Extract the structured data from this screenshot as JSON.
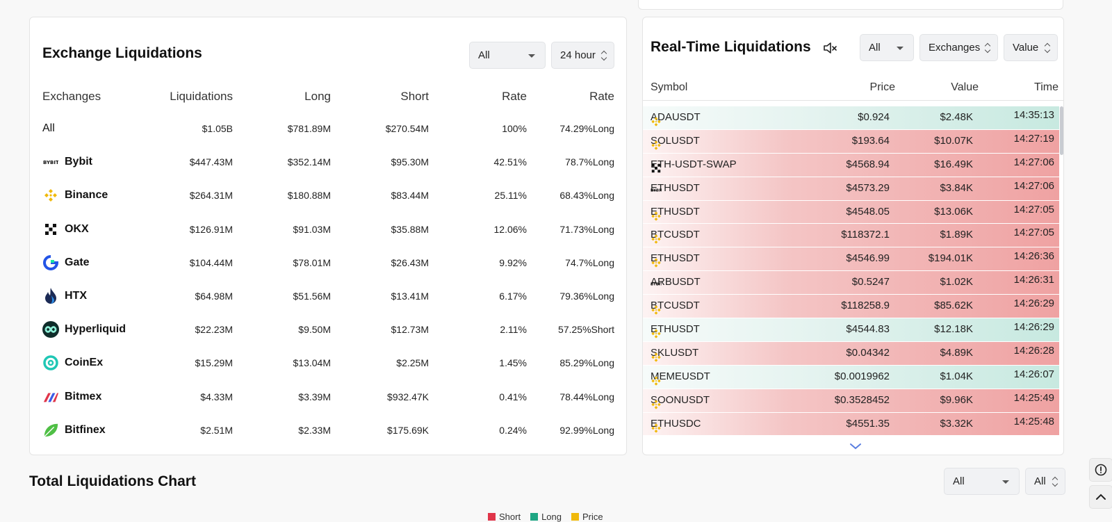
{
  "exchange_liquidations": {
    "title": "Exchange Liquidations",
    "filter_coin": "All",
    "filter_time": "24 hour",
    "columns": [
      "Exchanges",
      "Liquidations",
      "Long",
      "Short",
      "Rate",
      "Rate"
    ],
    "rows": [
      {
        "name": "All",
        "liq": "$1.05B",
        "long": "$781.89M",
        "short": "$270.54M",
        "rate": "100%",
        "side_rate": "74.29%Long",
        "side": "long",
        "icon": "none"
      },
      {
        "name": "Bybit",
        "liq": "$447.43M",
        "long": "$352.14M",
        "short": "$95.30M",
        "rate": "42.51%",
        "side_rate": "78.7%Long",
        "side": "long",
        "icon": "bybit-icon"
      },
      {
        "name": "Binance",
        "liq": "$264.31M",
        "long": "$180.88M",
        "short": "$83.44M",
        "rate": "25.11%",
        "side_rate": "68.43%Long",
        "side": "long",
        "icon": "binance-icon"
      },
      {
        "name": "OKX",
        "liq": "$126.91M",
        "long": "$91.03M",
        "short": "$35.88M",
        "rate": "12.06%",
        "side_rate": "71.73%Long",
        "side": "long",
        "icon": "okx-icon"
      },
      {
        "name": "Gate",
        "liq": "$104.44M",
        "long": "$78.01M",
        "short": "$26.43M",
        "rate": "9.92%",
        "side_rate": "74.7%Long",
        "side": "long",
        "icon": "gate-icon"
      },
      {
        "name": "HTX",
        "liq": "$64.98M",
        "long": "$51.56M",
        "short": "$13.41M",
        "rate": "6.17%",
        "side_rate": "79.36%Long",
        "side": "long",
        "icon": "htx-icon"
      },
      {
        "name": "Hyperliquid",
        "liq": "$22.23M",
        "long": "$9.50M",
        "short": "$12.73M",
        "rate": "2.11%",
        "side_rate": "57.25%Short",
        "side": "short",
        "icon": "hyperliquid-icon"
      },
      {
        "name": "CoinEx",
        "liq": "$15.29M",
        "long": "$13.04M",
        "short": "$2.25M",
        "rate": "1.45%",
        "side_rate": "85.29%Long",
        "side": "long",
        "icon": "coinex-icon"
      },
      {
        "name": "Bitmex",
        "liq": "$4.33M",
        "long": "$3.39M",
        "short": "$932.47K",
        "rate": "0.41%",
        "side_rate": "78.44%Long",
        "side": "long",
        "icon": "bitmex-icon"
      },
      {
        "name": "Bitfinex",
        "liq": "$2.51M",
        "long": "$2.33M",
        "short": "$175.69K",
        "rate": "0.24%",
        "side_rate": "92.99%Long",
        "side": "long",
        "icon": "bitfinex-icon"
      }
    ]
  },
  "realtime": {
    "title": "Real-Time Liquidations",
    "filter_coin": "All",
    "filter_exchange": "Exchanges",
    "filter_value": "Value",
    "columns": {
      "symbol": "Symbol",
      "price": "Price",
      "value": "Value",
      "time": "Time"
    },
    "rows": [
      {
        "symbol": "ADAUSDT",
        "price": "$0.924",
        "value": "$2.48K",
        "time": "14:35:13",
        "side": "long",
        "exchange": "binance"
      },
      {
        "symbol": "SOLUSDT",
        "price": "$193.64",
        "value": "$10.07K",
        "time": "14:27:19",
        "side": "short",
        "exchange": "binance"
      },
      {
        "symbol": "ETH-USDT-SWAP",
        "price": "$4568.94",
        "value": "$16.49K",
        "time": "14:27:06",
        "side": "short",
        "exchange": "okx"
      },
      {
        "symbol": "ETHUSDT",
        "price": "$4573.29",
        "value": "$3.84K",
        "time": "14:27:06",
        "side": "short",
        "exchange": "bybit"
      },
      {
        "symbol": "ETHUSDT",
        "price": "$4548.05",
        "value": "$13.06K",
        "time": "14:27:05",
        "side": "short",
        "exchange": "binance"
      },
      {
        "symbol": "BTCUSDT",
        "price": "$118372.1",
        "value": "$1.89K",
        "time": "14:27:05",
        "side": "short",
        "exchange": "binance"
      },
      {
        "symbol": "ETHUSDT",
        "price": "$4546.99",
        "value": "$194.01K",
        "time": "14:26:36",
        "side": "short",
        "exchange": "binance"
      },
      {
        "symbol": "ARBUSDT",
        "price": "$0.5247",
        "value": "$1.02K",
        "time": "14:26:31",
        "side": "short",
        "exchange": "bybit"
      },
      {
        "symbol": "BTCUSDT",
        "price": "$118258.9",
        "value": "$85.62K",
        "time": "14:26:29",
        "side": "short",
        "exchange": "binance"
      },
      {
        "symbol": "ETHUSDT",
        "price": "$4544.83",
        "value": "$12.18K",
        "time": "14:26:29",
        "side": "long",
        "exchange": "binance"
      },
      {
        "symbol": "SKLUSDT",
        "price": "$0.04342",
        "value": "$4.89K",
        "time": "14:26:28",
        "side": "short",
        "exchange": "binance"
      },
      {
        "symbol": "MEMEUSDT",
        "price": "$0.0019962",
        "value": "$1.04K",
        "time": "14:26:07",
        "side": "long",
        "exchange": "binance"
      },
      {
        "symbol": "SOONUSDT",
        "price": "$0.3528452",
        "value": "$9.96K",
        "time": "14:25:49",
        "side": "short",
        "exchange": "binance"
      },
      {
        "symbol": "ETHUSDC",
        "price": "$4551.35",
        "value": "$3.32K",
        "time": "14:25:48",
        "side": "short",
        "exchange": "binance"
      }
    ]
  },
  "total_chart": {
    "title": "Total Liquidations Chart",
    "filter1": "All",
    "filter2": "All",
    "legend": [
      {
        "label": "Short",
        "color": "#e0354a"
      },
      {
        "label": "Long",
        "color": "#1ea683"
      },
      {
        "label": "Price",
        "color": "#f0b90b"
      }
    ]
  },
  "colors": {
    "long": "#1ea683",
    "short": "#e0354a",
    "binance": "#f0b90b"
  }
}
